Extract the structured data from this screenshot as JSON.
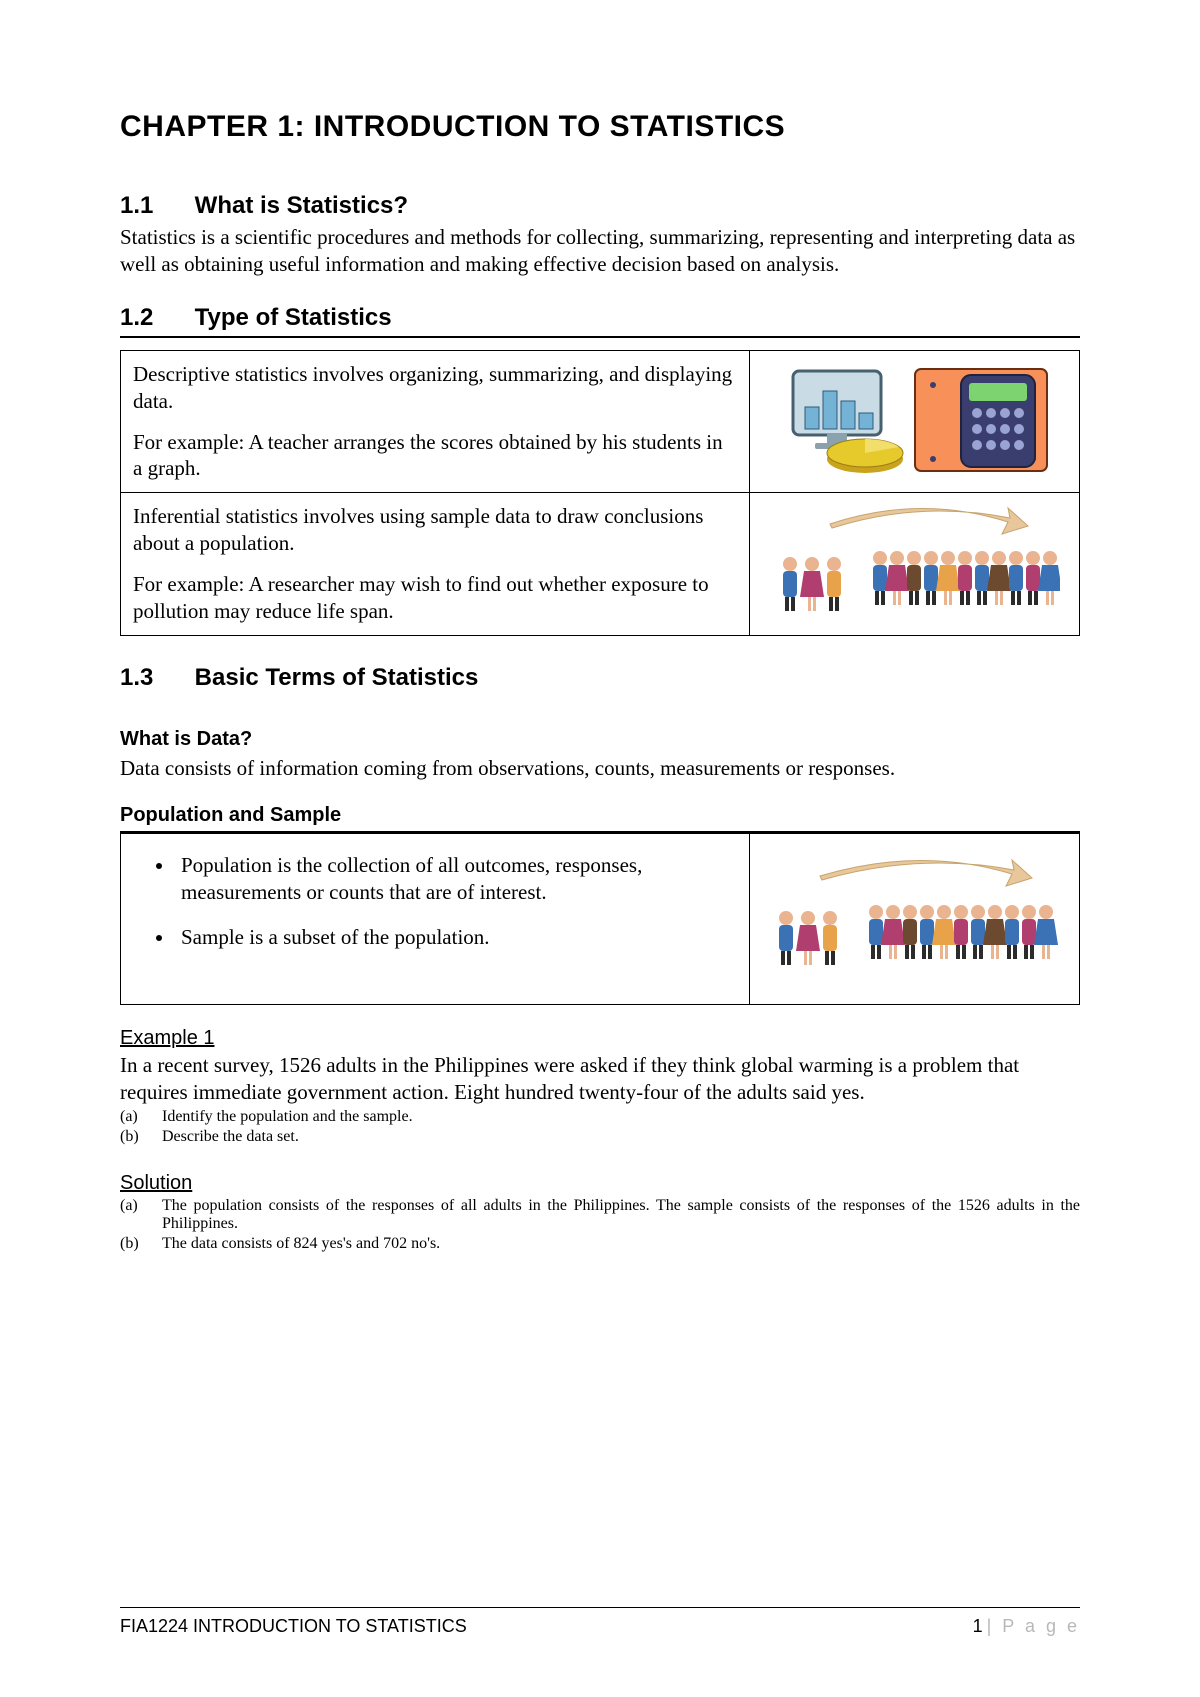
{
  "chapter_title": "CHAPTER 1: INTRODUCTION TO STATISTICS",
  "s11": {
    "num": "1.1",
    "title": "What is Statistics?",
    "body": "Statistics is a scientific procedures and methods for collecting, summarizing, representing and interpreting data as well as obtaining useful information and making effective decision based on analysis."
  },
  "s12": {
    "num": "1.2",
    "title": "Type of Statistics",
    "row1_p1": "Descriptive statistics involves organizing, summarizing, and displaying data.",
    "row1_p2": "For example: A teacher arranges the scores obtained by his students in a graph.",
    "row2_p1": "Inferential statistics involves using sample data to draw conclusions about a population.",
    "row2_p2": "For example: A researcher may wish to find out whether exposure to pollution may reduce life span.",
    "chart_illus": {
      "bg": "#f79159",
      "monitor": "#c9dbe4",
      "bar1": "#74b2d6",
      "bar2": "#74b2d6",
      "bar3": "#74b2d6",
      "pie": "#e6c92b",
      "calc": "#3a3e6e",
      "calc_screen": "#7dd36f"
    },
    "people_illus": {
      "arrow": "#e8c79a",
      "sample_colors": [
        "#3b72b5",
        "#b03e6e",
        "#e8a24a"
      ],
      "pop_colors": [
        "#3b72b5",
        "#b03e6e",
        "#6b4a2f",
        "#3b72b5",
        "#e8a24a",
        "#b03e6e",
        "#3b72b5",
        "#6b4a2f",
        "#3b72b5",
        "#b03e6e",
        "#3b72b5"
      ]
    }
  },
  "s13": {
    "num": "1.3",
    "title": "Basic Terms of Statistics",
    "data_h": "What is Data?",
    "data_body": "Data consists of information coming from observations, counts, measurements or responses.",
    "pop_h": "Population and Sample",
    "pop_li1": "Population is the collection of all outcomes, responses, measurements or counts that are of interest.",
    "pop_li2": "Sample is a subset of the population."
  },
  "example": {
    "h": "Example 1",
    "body": "In a recent survey, 1526 adults in the Philippines were asked if they think global warming is a problem that requires immediate government action. Eight hundred twenty-four of the adults said yes.",
    "a_lbl": "(a)",
    "a_txt": "Identify the population and the sample.",
    "b_lbl": "(b)",
    "b_txt": "Describe the data set."
  },
  "solution": {
    "h": "Solution",
    "a_lbl": "(a)",
    "a_txt": "The population consists of the responses of all adults in the Philippines. The sample consists of the responses of the 1526 adults in the Philippines.",
    "b_lbl": "(b)",
    "b_txt": "The data consists of 824 yes's and 702 no's."
  },
  "footer": {
    "left": "FIA1224 INTRODUCTION TO STATISTICS",
    "page_num": "1",
    "page_word": "| P a g e"
  }
}
